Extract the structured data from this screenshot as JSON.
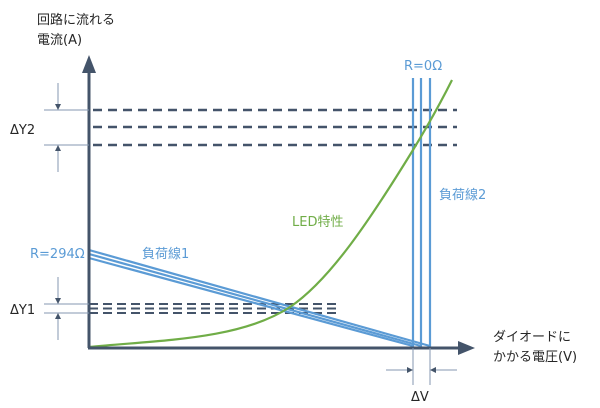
{
  "labels": {
    "y_axis_line1": "回路に流れる",
    "y_axis_line2": "電流(A)",
    "x_axis_line1": "ダイオードに",
    "x_axis_line2": "かかる電圧(V)",
    "delta_y2": "ΔY2",
    "delta_y1": "ΔY1",
    "delta_v": "ΔV",
    "r294": "R=294Ω",
    "r0": "R=0Ω",
    "load_line1": "負荷線1",
    "load_line2": "負荷線2",
    "led_curve": "LED特性"
  },
  "colors": {
    "axis": "#44546a",
    "load_line": "#5b9bd5",
    "led_curve": "#70ad47",
    "annotation": "#8497b0",
    "text": "#262626"
  }
}
